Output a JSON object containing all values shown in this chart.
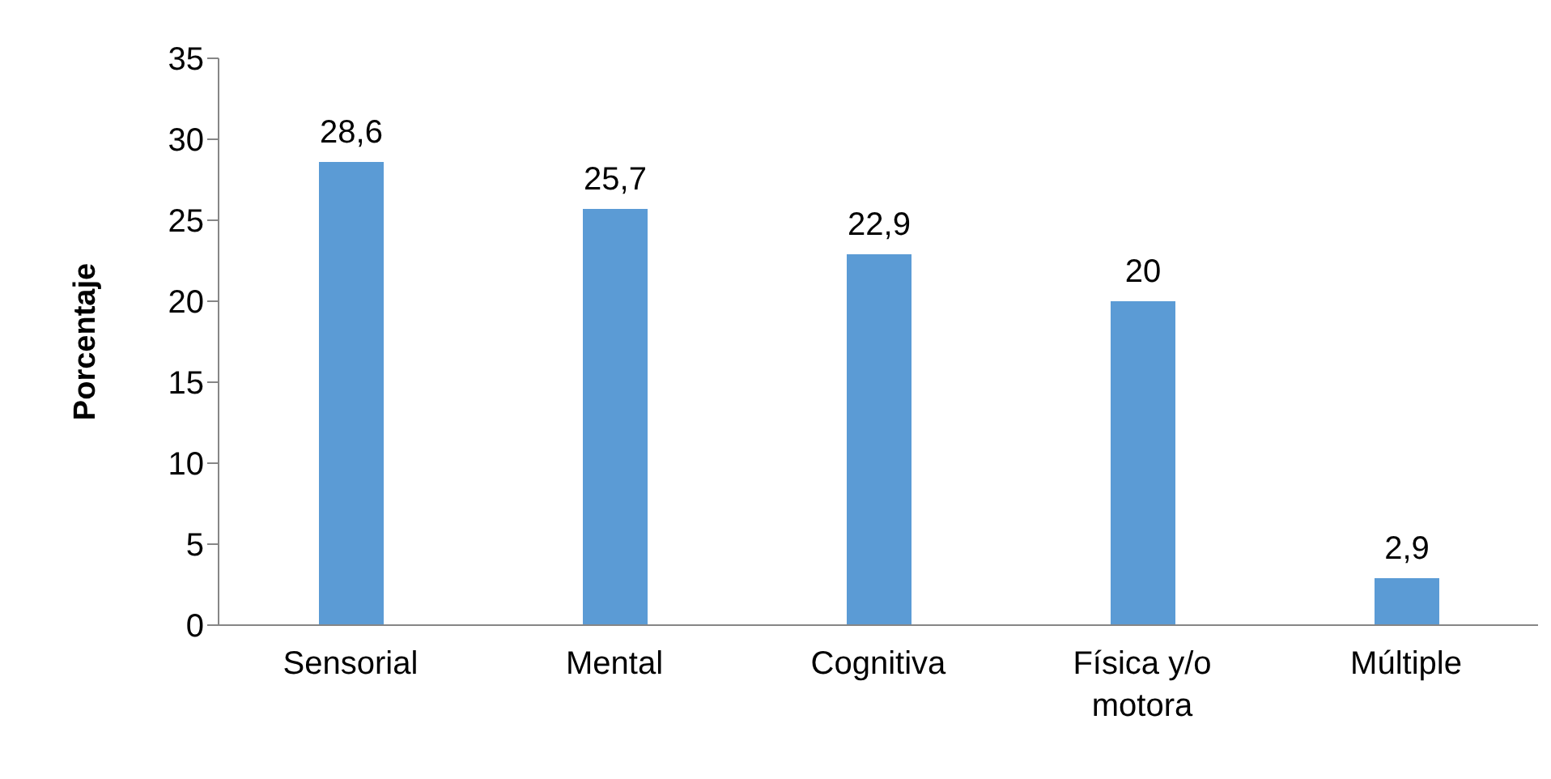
{
  "chart_data": {
    "type": "bar",
    "ylabel": "Porcentaje",
    "categories": [
      "Sensorial",
      "Mental",
      "Cognitiva",
      "Física y/o motora",
      "Múltiple"
    ],
    "values": [
      28.6,
      25.7,
      22.9,
      20,
      2.9
    ],
    "value_labels": [
      "28,6",
      "25,7",
      "22,9",
      "20",
      "2,9"
    ],
    "color": "#5b9bd5",
    "ylim": [
      0,
      35
    ],
    "yticks": [
      0,
      5,
      10,
      15,
      20,
      25,
      30,
      35
    ],
    "grid": false,
    "legend": false
  }
}
